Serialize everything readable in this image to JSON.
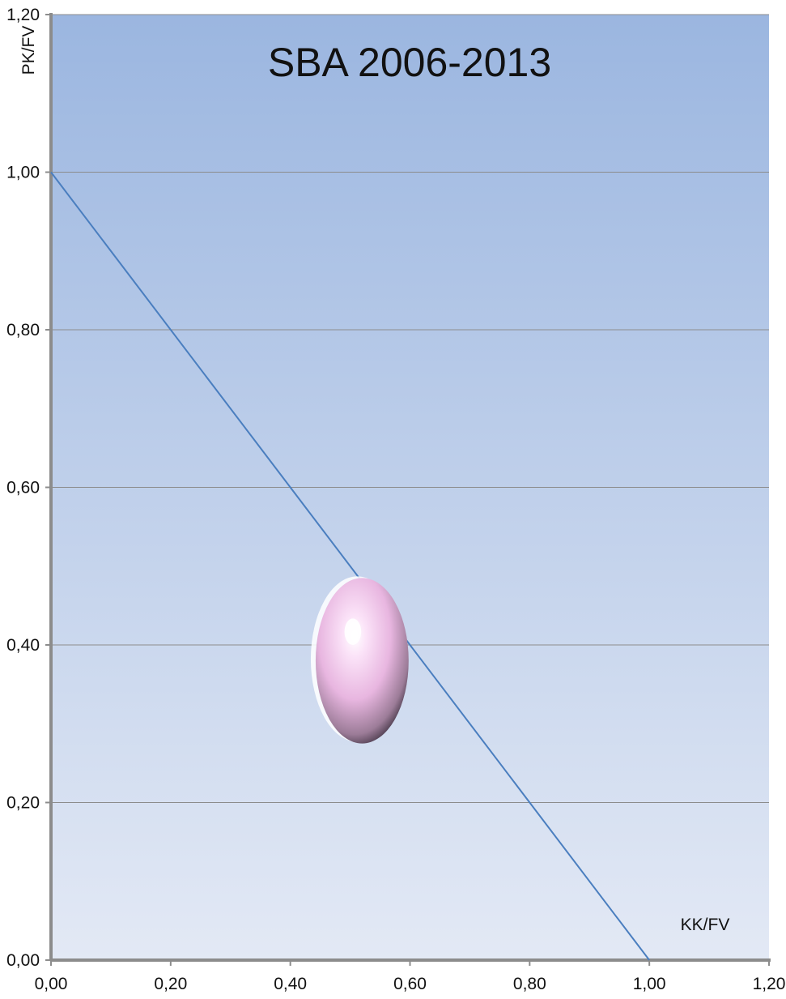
{
  "chart_data": {
    "type": "bubble",
    "title": "SBA 2006-2013",
    "xlabel": "KK/FV",
    "ylabel": "PK/FV",
    "xlim": [
      0,
      1.2
    ],
    "ylim": [
      0,
      1.2
    ],
    "x_ticks": [
      "0,00",
      "0,20",
      "0,40",
      "0,60",
      "0,80",
      "1,00",
      "1,20"
    ],
    "y_ticks": [
      "0,00",
      "0,20",
      "0,40",
      "0,60",
      "0,80",
      "1,00",
      "1,20"
    ],
    "x_tick_values": [
      0,
      0.2,
      0.4,
      0.6,
      0.8,
      1.0,
      1.2
    ],
    "y_tick_values": [
      0,
      0.2,
      0.4,
      0.6,
      0.8,
      1.0,
      1.2
    ],
    "grid": "horizontal",
    "reference_line": {
      "x": [
        0,
        1.0
      ],
      "y": [
        1.0,
        0
      ],
      "color": "#4a7ebf"
    },
    "bubbles": [
      {
        "x": 0.52,
        "y": 0.38,
        "rx": 0.105,
        "ry": 0.105,
        "color": "#f2c4ec"
      }
    ],
    "colors": {
      "plot_top": "#9bb6e0",
      "plot_bottom": "#e3e9f5",
      "axis": "#8c8c8c",
      "grid": "#8c8c8c"
    }
  }
}
